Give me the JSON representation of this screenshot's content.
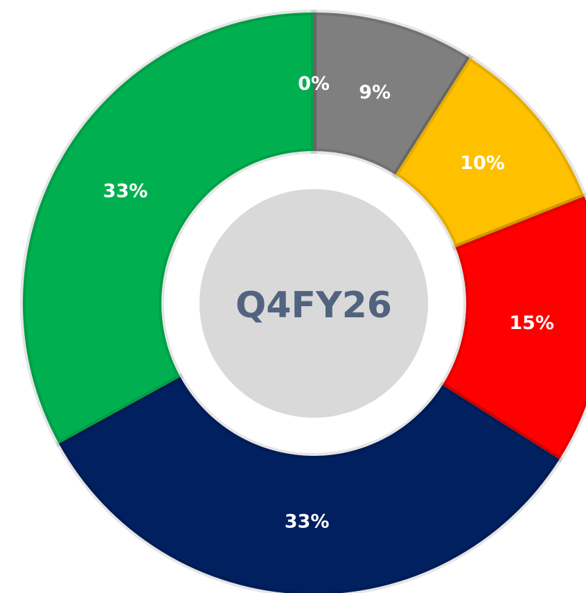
{
  "chart_data": {
    "type": "donut",
    "values": [
      0,
      9,
      10,
      15,
      33,
      33
    ],
    "value_labels": [
      "0%",
      "9%",
      "10%",
      "15%",
      "33%",
      "33%"
    ],
    "colors": [
      "#7f7f7f",
      "#7f7f7f",
      "#ffc000",
      "#ff0000",
      "#002060",
      "#00b050"
    ],
    "center_label": "Q4FY26"
  }
}
